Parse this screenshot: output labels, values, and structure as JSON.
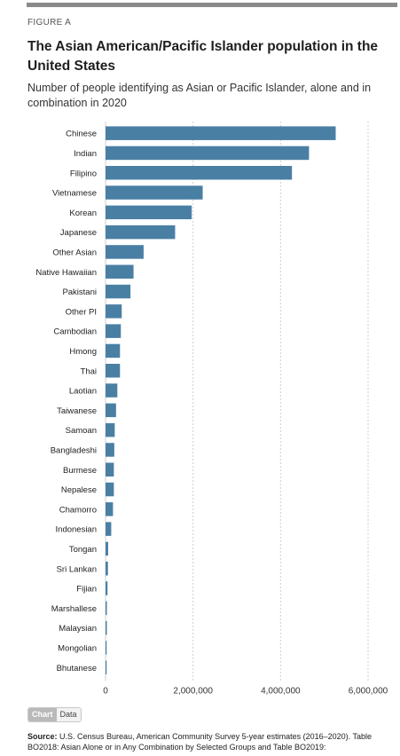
{
  "figure_label": "FIGURE A",
  "title": "The Asian American/Pacific Islander population in the United States",
  "subtitle": "Number of people identifying as Asian or Pacific Islander, alone and in combination in 2020",
  "tabs": {
    "chart": "Chart",
    "data": "Data"
  },
  "source": {
    "label": "Source:",
    "text": "U.S. Census Bureau, American Community Survey 5-year estimates (2016–2020). Table BO2018: Asian Alone or in Any Combination by Selected Groups and Table BO2019:"
  },
  "colors": {
    "bar": "#4a7fa4",
    "grid": "#cfcfcf"
  },
  "chart_data": {
    "type": "bar",
    "orientation": "horizontal",
    "categories": [
      "Chinese",
      "Indian",
      "Filipino",
      "Vietnamese",
      "Korean",
      "Japanese",
      "Other Asian",
      "Native Hawaiian",
      "Pakistani",
      "Other PI",
      "Cambodian",
      "Hmong",
      "Thai",
      "Laotian",
      "Taiwanese",
      "Samoan",
      "Bangladeshi",
      "Burmese",
      "Nepalese",
      "Chamorro",
      "Indonesian",
      "Tongan",
      "Sri Lankan",
      "Fijian",
      "Marshallese",
      "Malaysian",
      "Mongolian",
      "Bhutanese"
    ],
    "values": [
      5260000,
      4650000,
      4260000,
      2220000,
      1970000,
      1590000,
      870000,
      640000,
      570000,
      370000,
      350000,
      330000,
      330000,
      270000,
      240000,
      210000,
      200000,
      190000,
      190000,
      170000,
      130000,
      60000,
      55000,
      45000,
      30000,
      30000,
      25000,
      25000
    ],
    "x_ticks": [
      "0",
      "2,000,000",
      "4,000,000",
      "6,000,000"
    ],
    "x_tick_values": [
      0,
      2000000,
      4000000,
      6000000
    ],
    "xlim": [
      0,
      6000000
    ],
    "grid": true
  }
}
